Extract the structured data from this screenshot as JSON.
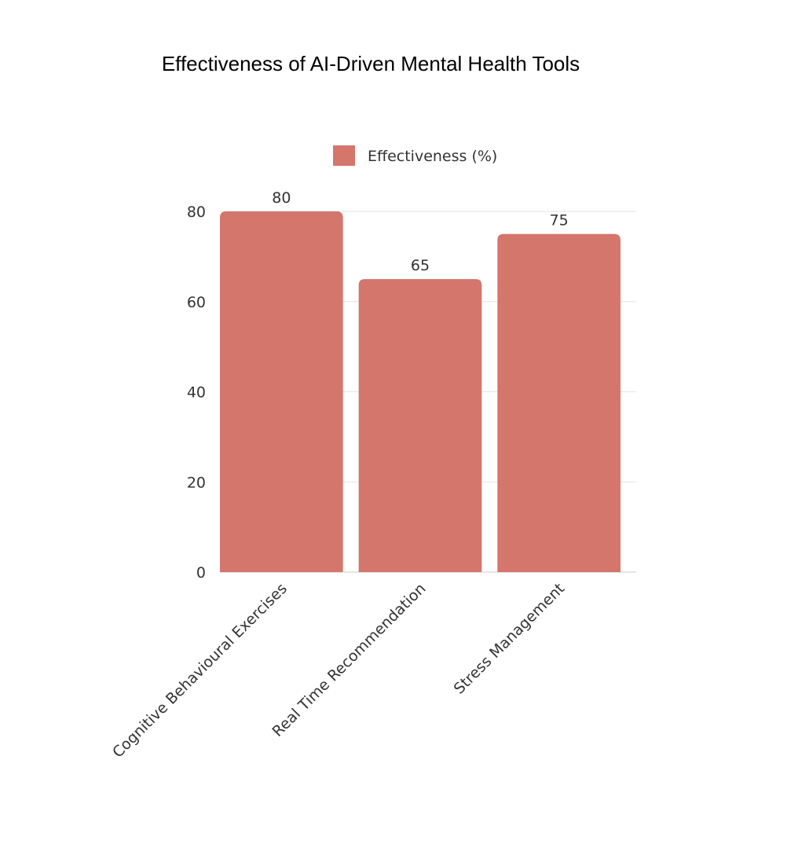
{
  "chart_data": {
    "type": "bar",
    "title": "Effectiveness of AI-Driven Mental Health Tools",
    "categories": [
      "Cognitive Behavioural Exercises",
      "Real Time Recommendation",
      "Stress Management"
    ],
    "series": [
      {
        "name": "Effectiveness (%)",
        "values": [
          80,
          65,
          75
        ],
        "color": "#d4766c"
      }
    ],
    "xlabel": "",
    "ylabel": "",
    "ylim": [
      0,
      80
    ],
    "yticks": [
      0,
      20,
      40,
      60,
      80
    ],
    "grid": true,
    "legend": "top-center",
    "data_labels": true
  }
}
